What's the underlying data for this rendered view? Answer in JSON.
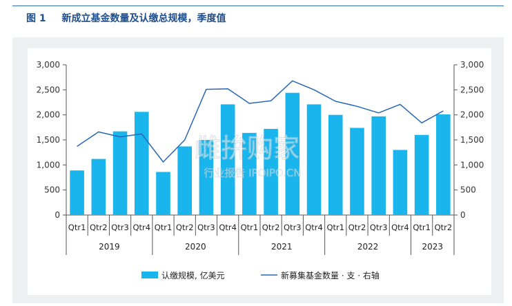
{
  "figure": {
    "number": "图 1",
    "title": "新成立基金数量及认缴总规模，季度值"
  },
  "watermark": {
    "text_main": "雌拚购家",
    "text_sub": "行业报告 IPOIPO.CN"
  },
  "colors": {
    "bar": "#19b5ec",
    "line": "#2566b8",
    "title": "#1f4e8c"
  },
  "chart_data": {
    "type": "bar",
    "categories": [
      "Qtr1",
      "Qtr2",
      "Qtr3",
      "Qtr4",
      "Qtr1",
      "Qtr2",
      "Qtr3",
      "Qtr4",
      "Qtr1",
      "Qtr2",
      "Qtr3",
      "Qtr4",
      "Qtr1",
      "Qtr2",
      "Qtr3",
      "Qtr4",
      "Qtr1",
      "Qtr2"
    ],
    "years": [
      {
        "label": "2019",
        "count": 4
      },
      {
        "label": "2020",
        "count": 4
      },
      {
        "label": "2021",
        "count": 4
      },
      {
        "label": "2022",
        "count": 4
      },
      {
        "label": "2023",
        "count": 2
      }
    ],
    "series": [
      {
        "name": "认缴规模, 亿美元",
        "kind": "bar",
        "axis": "left",
        "values": [
          890,
          1120,
          1670,
          2060,
          860,
          1370,
          1500,
          2210,
          1640,
          1720,
          2440,
          2210,
          2000,
          1740,
          1970,
          1300,
          1600,
          2010
        ]
      },
      {
        "name": "新募集基金数量 · 支 · 右轴",
        "kind": "line",
        "axis": "right",
        "values": [
          1370,
          1660,
          1560,
          1620,
          1060,
          1500,
          2510,
          2520,
          2230,
          2280,
          2680,
          2500,
          2270,
          2170,
          2040,
          2210,
          1840,
          2080
        ]
      }
    ],
    "ylim": [
      0,
      3000
    ],
    "y2lim": [
      0,
      3000
    ],
    "yticks": [
      "0",
      "500",
      "1,000",
      "1,500",
      "2,000",
      "2,500",
      "3,000"
    ],
    "y2ticks": [
      "0",
      "500",
      "1,000",
      "1,500",
      "2,000",
      "2,500",
      "3,000"
    ],
    "legend_position": "bottom"
  }
}
